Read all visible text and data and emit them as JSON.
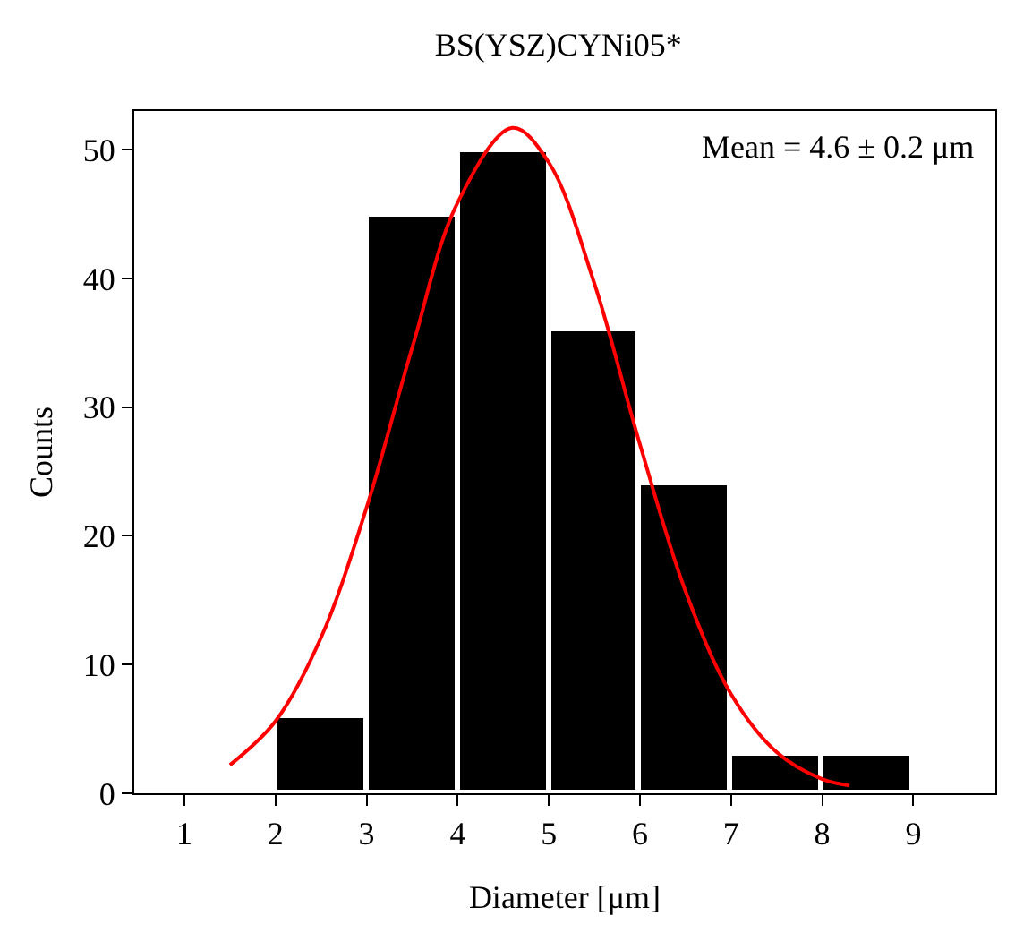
{
  "chart_data": {
    "type": "histogram",
    "title": "BS(YSZ)CYNi05*",
    "xlabel": "Diameter [μm]",
    "ylabel": "Counts",
    "bins": [
      1,
      2,
      3,
      4,
      5,
      6,
      7,
      8,
      9
    ],
    "values": [
      0,
      6,
      45,
      50,
      36,
      24,
      3,
      3
    ],
    "color": "#000000",
    "series": [
      {
        "type": "line",
        "color": "#ff0000",
        "x": [
          1.5,
          2,
          2.5,
          3,
          3.5,
          4,
          4.6,
          5,
          5.5,
          6,
          6.5,
          7,
          7.5,
          8,
          8.3
        ],
        "values": [
          2.2,
          5.6,
          12.1,
          22.2,
          34.6,
          45.9,
          51.7,
          49,
          39.6,
          27.1,
          15.7,
          7.7,
          3.2,
          1.1,
          0.6
        ]
      }
    ],
    "annotations": [
      "Mean = 4.6 ± 0.2 μm"
    ],
    "xlim": [
      0.45,
      9.9
    ],
    "xticks": [
      1,
      2,
      3,
      4,
      5,
      6,
      7,
      8,
      9
    ],
    "ylim": [
      0,
      53
    ],
    "yticks": [
      0,
      10,
      20,
      30,
      40,
      50
    ],
    "grid": false,
    "legend": false
  }
}
